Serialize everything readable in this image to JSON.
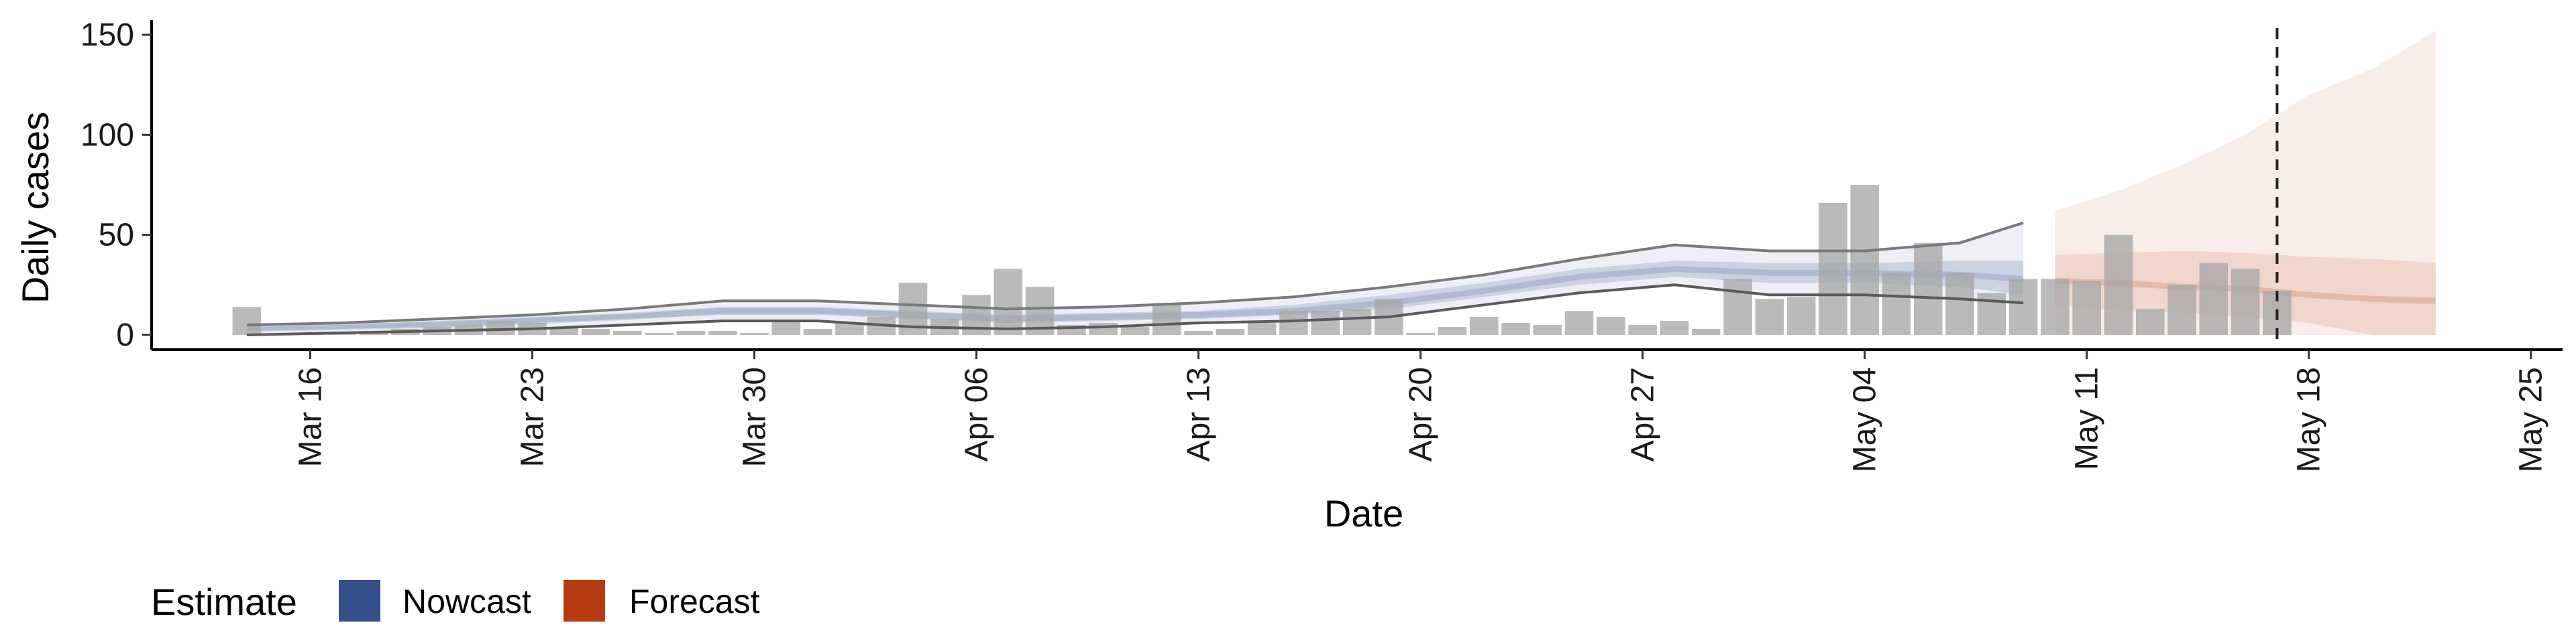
{
  "chart_data": {
    "type": "bar",
    "title": "",
    "xlabel": "Date",
    "ylabel": "Daily cases",
    "ylim": [
      0,
      160
    ],
    "xlim": [
      "2020-03-11",
      "2020-05-26"
    ],
    "yticks": [
      0,
      50,
      100,
      150
    ],
    "xticks": [
      {
        "date": "2020-03-16",
        "label": "Mar 16"
      },
      {
        "date": "2020-03-23",
        "label": "Mar 23"
      },
      {
        "date": "2020-03-30",
        "label": "Mar 30"
      },
      {
        "date": "2020-04-06",
        "label": "Apr 06"
      },
      {
        "date": "2020-04-13",
        "label": "Apr 13"
      },
      {
        "date": "2020-04-20",
        "label": "Apr 20"
      },
      {
        "date": "2020-04-27",
        "label": "Apr 27"
      },
      {
        "date": "2020-05-04",
        "label": "May 04"
      },
      {
        "date": "2020-05-11",
        "label": "May 11"
      },
      {
        "date": "2020-05-18",
        "label": "May 18"
      },
      {
        "date": "2020-05-25",
        "label": "May 25"
      }
    ],
    "grid": false,
    "legend_position": "bottom-left",
    "vline_date": "2020-05-17",
    "observed_cases": {
      "dates": [
        "2020-03-14",
        "2020-03-15",
        "2020-03-16",
        "2020-03-17",
        "2020-03-18",
        "2020-03-19",
        "2020-03-20",
        "2020-03-21",
        "2020-03-22",
        "2020-03-23",
        "2020-03-24",
        "2020-03-25",
        "2020-03-26",
        "2020-03-27",
        "2020-03-28",
        "2020-03-29",
        "2020-03-30",
        "2020-03-31",
        "2020-04-01",
        "2020-04-02",
        "2020-04-03",
        "2020-04-04",
        "2020-04-05",
        "2020-04-06",
        "2020-04-07",
        "2020-04-08",
        "2020-04-09",
        "2020-04-10",
        "2020-04-11",
        "2020-04-12",
        "2020-04-13",
        "2020-04-14",
        "2020-04-15",
        "2020-04-16",
        "2020-04-17",
        "2020-04-18",
        "2020-04-19",
        "2020-04-20",
        "2020-04-21",
        "2020-04-22",
        "2020-04-23",
        "2020-04-24",
        "2020-04-25",
        "2020-04-26",
        "2020-04-27",
        "2020-04-28",
        "2020-04-29",
        "2020-04-30",
        "2020-05-01",
        "2020-05-02",
        "2020-05-03",
        "2020-05-04",
        "2020-05-05",
        "2020-05-06",
        "2020-05-07",
        "2020-05-08",
        "2020-05-09",
        "2020-05-10",
        "2020-05-11",
        "2020-05-12",
        "2020-05-13",
        "2020-05-14",
        "2020-05-15",
        "2020-05-16",
        "2020-05-17"
      ],
      "values": [
        14,
        0,
        0,
        1,
        2,
        3,
        4,
        5,
        7,
        6,
        4,
        3,
        2,
        1,
        2,
        2,
        1,
        7,
        3,
        6,
        9,
        26,
        8,
        20,
        33,
        24,
        5,
        6,
        4,
        16,
        2,
        3,
        6,
        12,
        12,
        13,
        18,
        1,
        4,
        9,
        6,
        5,
        12,
        9,
        5,
        7,
        3,
        28,
        18,
        19,
        66,
        75,
        31,
        46,
        31,
        21,
        28,
        28,
        27,
        50,
        13,
        25,
        36,
        33,
        22
      ]
    },
    "series": [
      {
        "name": "Nowcast",
        "color": "#34508c",
        "dates": [
          "2020-03-14",
          "2020-03-17",
          "2020-03-20",
          "2020-03-23",
          "2020-03-26",
          "2020-03-29",
          "2020-04-01",
          "2020-04-04",
          "2020-04-07",
          "2020-04-10",
          "2020-04-13",
          "2020-04-16",
          "2020-04-19",
          "2020-04-22",
          "2020-04-25",
          "2020-04-28",
          "2020-05-01",
          "2020-05-04",
          "2020-05-07",
          "2020-05-09"
        ],
        "median": [
          3,
          4,
          5,
          7,
          9,
          12,
          12,
          10,
          8,
          9,
          10,
          12,
          16,
          22,
          29,
          33,
          31,
          31,
          30,
          28
        ],
        "inner_lower": [
          2,
          3,
          4,
          6,
          8,
          10,
          10,
          8,
          6,
          7,
          8,
          10,
          13,
          19,
          25,
          29,
          26,
          26,
          24,
          20
        ],
        "inner_upper": [
          4,
          5,
          7,
          9,
          11,
          14,
          14,
          12,
          10,
          11,
          12,
          15,
          20,
          26,
          33,
          37,
          36,
          36,
          37,
          37
        ],
        "outer_lower": [
          0,
          1,
          2,
          3,
          5,
          7,
          7,
          4,
          3,
          4,
          6,
          7,
          9,
          15,
          21,
          25,
          20,
          20,
          18,
          16
        ],
        "outer_upper": [
          5,
          6,
          8,
          10,
          13,
          17,
          17,
          15,
          13,
          14,
          16,
          19,
          24,
          30,
          38,
          45,
          42,
          42,
          46,
          56
        ]
      },
      {
        "name": "Forecast",
        "color": "#b73a10",
        "dates": [
          "2020-05-10",
          "2020-05-12",
          "2020-05-14",
          "2020-05-16",
          "2020-05-18",
          "2020-05-20",
          "2020-05-22"
        ],
        "median": [
          27,
          26,
          24,
          23,
          20,
          18,
          17
        ],
        "inner_lower": [
          15,
          12,
          11,
          9,
          6,
          0,
          0
        ],
        "inner_upper": [
          40,
          41,
          42,
          41,
          39,
          38,
          36
        ],
        "outer_lower": [
          0,
          0,
          0,
          0,
          0,
          0,
          0
        ],
        "outer_upper": [
          62,
          72,
          85,
          100,
          120,
          133,
          152
        ]
      }
    ]
  },
  "legend": {
    "title": "Estimate",
    "items": [
      {
        "label": "Nowcast",
        "color": "#34508c"
      },
      {
        "label": "Forecast",
        "color": "#b73a10"
      }
    ]
  }
}
